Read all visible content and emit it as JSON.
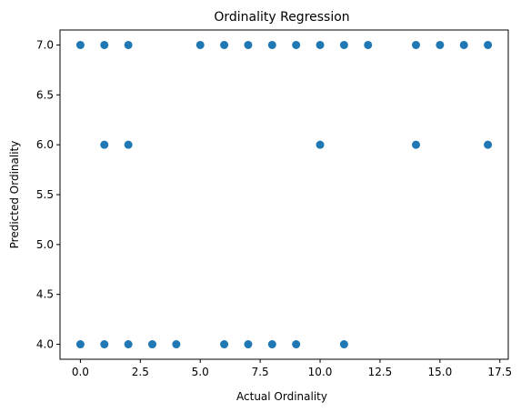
{
  "chart_data": {
    "type": "scatter",
    "title": "Ordinality Regression",
    "xlabel": "Actual Ordinality",
    "ylabel": "Predicted Ordinality",
    "xlim": [
      -0.85,
      17.85
    ],
    "ylim": [
      3.85,
      7.15
    ],
    "xticks": [
      0.0,
      2.5,
      5.0,
      7.5,
      10.0,
      12.5,
      15.0,
      17.5
    ],
    "xtick_labels": [
      "0.0",
      "2.5",
      "5.0",
      "7.5",
      "10.0",
      "12.5",
      "15.0",
      "17.5"
    ],
    "yticks": [
      4.0,
      4.5,
      5.0,
      5.5,
      6.0,
      6.5,
      7.0
    ],
    "ytick_labels": [
      "4.0",
      "4.5",
      "5.0",
      "5.5",
      "6.0",
      "6.5",
      "7.0"
    ],
    "grid": false,
    "marker_color": "#1f77b4",
    "points": [
      {
        "x": 0,
        "y": 7
      },
      {
        "x": 1,
        "y": 7
      },
      {
        "x": 2,
        "y": 7
      },
      {
        "x": 5,
        "y": 7
      },
      {
        "x": 6,
        "y": 7
      },
      {
        "x": 7,
        "y": 7
      },
      {
        "x": 8,
        "y": 7
      },
      {
        "x": 9,
        "y": 7
      },
      {
        "x": 10,
        "y": 7
      },
      {
        "x": 11,
        "y": 7
      },
      {
        "x": 12,
        "y": 7
      },
      {
        "x": 14,
        "y": 7
      },
      {
        "x": 15,
        "y": 7
      },
      {
        "x": 16,
        "y": 7
      },
      {
        "x": 17,
        "y": 7
      },
      {
        "x": 1,
        "y": 6
      },
      {
        "x": 2,
        "y": 6
      },
      {
        "x": 10,
        "y": 6
      },
      {
        "x": 14,
        "y": 6
      },
      {
        "x": 17,
        "y": 6
      },
      {
        "x": 0,
        "y": 4
      },
      {
        "x": 1,
        "y": 4
      },
      {
        "x": 2,
        "y": 4
      },
      {
        "x": 3,
        "y": 4
      },
      {
        "x": 4,
        "y": 4
      },
      {
        "x": 6,
        "y": 4
      },
      {
        "x": 7,
        "y": 4
      },
      {
        "x": 8,
        "y": 4
      },
      {
        "x": 9,
        "y": 4
      },
      {
        "x": 11,
        "y": 4
      }
    ]
  }
}
